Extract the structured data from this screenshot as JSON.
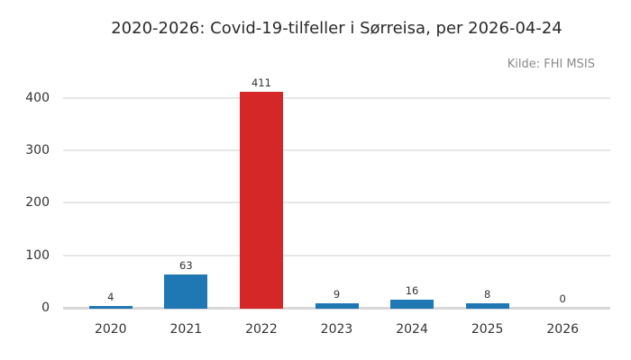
{
  "chart_data": {
    "type": "bar",
    "title": "2020-2026: Covid-19-tilfeller i Sørreisa, per 2026-04-24",
    "source": "Kilde: FHI MSIS",
    "categories": [
      "2020",
      "2021",
      "2022",
      "2023",
      "2024",
      "2025",
      "2026"
    ],
    "values": [
      4,
      63,
      411,
      9,
      16,
      8,
      0
    ],
    "bar_colors": [
      "#1f77b4",
      "#1f77b4",
      "#d62728",
      "#1f77b4",
      "#1f77b4",
      "#1f77b4",
      "#1f77b4"
    ],
    "value_labels": [
      4,
      63,
      411,
      9,
      16,
      8,
      0
    ],
    "yticks": [
      0,
      100,
      200,
      300,
      400
    ],
    "ylim": [
      0,
      440
    ],
    "xlabel": "",
    "ylabel": "",
    "grid": true,
    "legend": false,
    "colors": {
      "bar_default": "#1f77b4",
      "bar_highlight": "#d62728",
      "gridline": "#e6e6e6",
      "baseline": "#d8d8d8",
      "tick_text": "#333333",
      "title_text": "#2a2a2a",
      "source_text": "#8a8a8a",
      "background": "#ffffff"
    }
  }
}
